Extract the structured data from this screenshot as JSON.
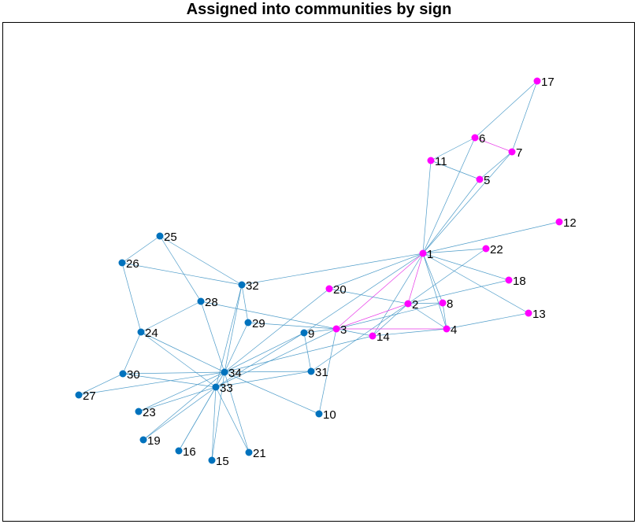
{
  "title": "Assigned into communities by sign",
  "colors": {
    "edge_blue": "#4e9cc9",
    "edge_magenta": "#e838e8",
    "node_blue": "#0072bd",
    "node_magenta": "#ff00ff"
  },
  "nodes": [
    {
      "id": "1",
      "group": "magenta"
    },
    {
      "id": "2",
      "group": "magenta"
    },
    {
      "id": "3",
      "group": "magenta"
    },
    {
      "id": "4",
      "group": "magenta"
    },
    {
      "id": "5",
      "group": "magenta"
    },
    {
      "id": "6",
      "group": "magenta"
    },
    {
      "id": "7",
      "group": "magenta"
    },
    {
      "id": "8",
      "group": "magenta"
    },
    {
      "id": "9",
      "group": "blue"
    },
    {
      "id": "10",
      "group": "blue"
    },
    {
      "id": "11",
      "group": "magenta"
    },
    {
      "id": "12",
      "group": "magenta"
    },
    {
      "id": "13",
      "group": "magenta"
    },
    {
      "id": "14",
      "group": "magenta"
    },
    {
      "id": "15",
      "group": "blue"
    },
    {
      "id": "16",
      "group": "blue"
    },
    {
      "id": "17",
      "group": "magenta"
    },
    {
      "id": "18",
      "group": "magenta"
    },
    {
      "id": "19",
      "group": "blue"
    },
    {
      "id": "20",
      "group": "magenta"
    },
    {
      "id": "21",
      "group": "blue"
    },
    {
      "id": "22",
      "group": "magenta"
    },
    {
      "id": "23",
      "group": "blue"
    },
    {
      "id": "24",
      "group": "blue"
    },
    {
      "id": "25",
      "group": "blue"
    },
    {
      "id": "26",
      "group": "blue"
    },
    {
      "id": "27",
      "group": "blue"
    },
    {
      "id": "28",
      "group": "blue"
    },
    {
      "id": "29",
      "group": "blue"
    },
    {
      "id": "30",
      "group": "blue"
    },
    {
      "id": "31",
      "group": "blue"
    },
    {
      "id": "32",
      "group": "blue"
    },
    {
      "id": "33",
      "group": "blue"
    },
    {
      "id": "34",
      "group": "blue"
    }
  ],
  "edges": [
    [
      "1",
      "2",
      "magenta"
    ],
    [
      "1",
      "3",
      "magenta"
    ],
    [
      "1",
      "4",
      "blue"
    ],
    [
      "1",
      "5",
      "blue"
    ],
    [
      "1",
      "6",
      "blue"
    ],
    [
      "1",
      "7",
      "blue"
    ],
    [
      "1",
      "8",
      "blue"
    ],
    [
      "1",
      "9",
      "blue"
    ],
    [
      "1",
      "11",
      "blue"
    ],
    [
      "1",
      "12",
      "blue"
    ],
    [
      "1",
      "13",
      "blue"
    ],
    [
      "1",
      "14",
      "blue"
    ],
    [
      "1",
      "18",
      "blue"
    ],
    [
      "1",
      "20",
      "blue"
    ],
    [
      "1",
      "22",
      "blue"
    ],
    [
      "1",
      "32",
      "blue"
    ],
    [
      "2",
      "3",
      "magenta"
    ],
    [
      "2",
      "4",
      "blue"
    ],
    [
      "2",
      "8",
      "blue"
    ],
    [
      "2",
      "14",
      "blue"
    ],
    [
      "2",
      "18",
      "blue"
    ],
    [
      "2",
      "20",
      "blue"
    ],
    [
      "2",
      "22",
      "blue"
    ],
    [
      "2",
      "31",
      "blue"
    ],
    [
      "3",
      "4",
      "magenta"
    ],
    [
      "3",
      "8",
      "blue"
    ],
    [
      "3",
      "9",
      "blue"
    ],
    [
      "3",
      "10",
      "blue"
    ],
    [
      "3",
      "14",
      "blue"
    ],
    [
      "3",
      "28",
      "blue"
    ],
    [
      "3",
      "29",
      "blue"
    ],
    [
      "3",
      "33",
      "blue"
    ],
    [
      "4",
      "8",
      "blue"
    ],
    [
      "4",
      "13",
      "blue"
    ],
    [
      "4",
      "14",
      "blue"
    ],
    [
      "5",
      "7",
      "blue"
    ],
    [
      "5",
      "11",
      "blue"
    ],
    [
      "6",
      "7",
      "magenta"
    ],
    [
      "6",
      "11",
      "blue"
    ],
    [
      "6",
      "17",
      "blue"
    ],
    [
      "7",
      "17",
      "blue"
    ],
    [
      "9",
      "31",
      "blue"
    ],
    [
      "9",
      "33",
      "blue"
    ],
    [
      "9",
      "34",
      "blue"
    ],
    [
      "10",
      "34",
      "blue"
    ],
    [
      "14",
      "34",
      "blue"
    ],
    [
      "15",
      "33",
      "blue"
    ],
    [
      "15",
      "34",
      "blue"
    ],
    [
      "16",
      "33",
      "blue"
    ],
    [
      "16",
      "34",
      "blue"
    ],
    [
      "19",
      "33",
      "blue"
    ],
    [
      "19",
      "34",
      "blue"
    ],
    [
      "20",
      "34",
      "blue"
    ],
    [
      "21",
      "33",
      "blue"
    ],
    [
      "21",
      "34",
      "blue"
    ],
    [
      "23",
      "33",
      "blue"
    ],
    [
      "23",
      "34",
      "blue"
    ],
    [
      "24",
      "26",
      "blue"
    ],
    [
      "24",
      "28",
      "blue"
    ],
    [
      "24",
      "30",
      "blue"
    ],
    [
      "24",
      "33",
      "blue"
    ],
    [
      "24",
      "34",
      "blue"
    ],
    [
      "25",
      "26",
      "blue"
    ],
    [
      "25",
      "28",
      "blue"
    ],
    [
      "25",
      "32",
      "blue"
    ],
    [
      "26",
      "32",
      "blue"
    ],
    [
      "27",
      "30",
      "blue"
    ],
    [
      "27",
      "34",
      "blue"
    ],
    [
      "28",
      "34",
      "blue"
    ],
    [
      "29",
      "32",
      "blue"
    ],
    [
      "29",
      "34",
      "blue"
    ],
    [
      "30",
      "33",
      "blue"
    ],
    [
      "30",
      "34",
      "blue"
    ],
    [
      "31",
      "33",
      "blue"
    ],
    [
      "31",
      "34",
      "blue"
    ],
    [
      "32",
      "33",
      "blue"
    ],
    [
      "32",
      "34",
      "blue"
    ],
    [
      "33",
      "34",
      "blue"
    ]
  ]
}
